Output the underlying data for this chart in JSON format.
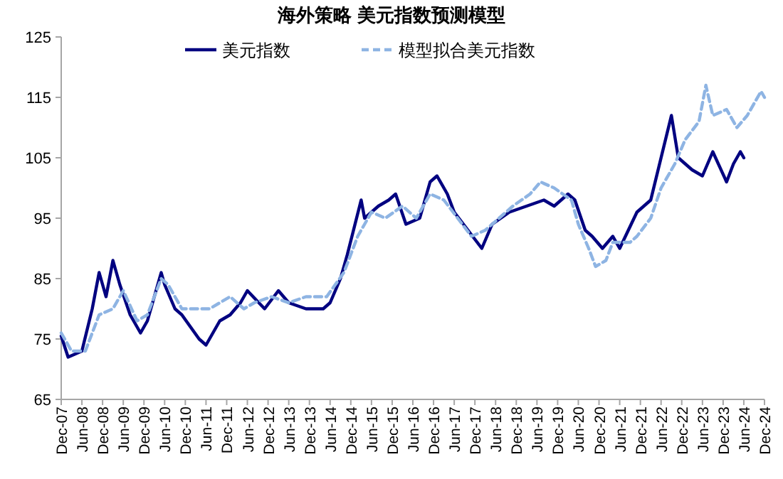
{
  "chart_data": {
    "type": "line",
    "title": "海外策略 美元指数预测模型",
    "xlim": [
      "2007-12",
      "2024-12"
    ],
    "ylim": [
      65,
      125
    ],
    "yticks": [
      65,
      75,
      85,
      95,
      105,
      115,
      125
    ],
    "xticks": [
      {
        "value": "2007-12",
        "label": "Dec-07"
      },
      {
        "value": "2008-06",
        "label": "Jun-08"
      },
      {
        "value": "2008-12",
        "label": "Dec-08"
      },
      {
        "value": "2009-06",
        "label": "Jun-09"
      },
      {
        "value": "2009-12",
        "label": "Dec-09"
      },
      {
        "value": "2010-06",
        "label": "Jun-10"
      },
      {
        "value": "2010-12",
        "label": "Dec-10"
      },
      {
        "value": "2011-06",
        "label": "Jun-11"
      },
      {
        "value": "2011-12",
        "label": "Dec-11"
      },
      {
        "value": "2012-06",
        "label": "Jun-12"
      },
      {
        "value": "2012-12",
        "label": "Dec-12"
      },
      {
        "value": "2013-06",
        "label": "Jun-13"
      },
      {
        "value": "2013-12",
        "label": "Dec-13"
      },
      {
        "value": "2014-06",
        "label": "Jun-14"
      },
      {
        "value": "2014-12",
        "label": "Dec-14"
      },
      {
        "value": "2015-06",
        "label": "Jun-15"
      },
      {
        "value": "2015-12",
        "label": "Dec-15"
      },
      {
        "value": "2016-06",
        "label": "Jun-16"
      },
      {
        "value": "2016-12",
        "label": "Dec-16"
      },
      {
        "value": "2017-06",
        "label": "Jun-17"
      },
      {
        "value": "2017-12",
        "label": "Dec-17"
      },
      {
        "value": "2018-06",
        "label": "Jun-18"
      },
      {
        "value": "2018-12",
        "label": "Dec-18"
      },
      {
        "value": "2019-06",
        "label": "Jun-19"
      },
      {
        "value": "2019-12",
        "label": "Dec-19"
      },
      {
        "value": "2020-06",
        "label": "Jun-20"
      },
      {
        "value": "2020-12",
        "label": "Dec-20"
      },
      {
        "value": "2021-06",
        "label": "Jun-21"
      },
      {
        "value": "2021-12",
        "label": "Dec-21"
      },
      {
        "value": "2022-06",
        "label": "Jun-22"
      },
      {
        "value": "2022-12",
        "label": "Dec-22"
      },
      {
        "value": "2023-06",
        "label": "Jun-23"
      },
      {
        "value": "2023-12",
        "label": "Dec-23"
      },
      {
        "value": "2024-06",
        "label": "Jun-24"
      },
      {
        "value": "2024-12",
        "label": "Dec-24"
      }
    ],
    "grid": false,
    "legend": "top",
    "marker": "none",
    "series": [
      {
        "name": "美元指数",
        "color": "#000080",
        "line_style": "solid",
        "x": [
          "2007-12",
          "2008-02",
          "2008-06",
          "2008-09",
          "2008-11",
          "2009-01",
          "2009-03",
          "2009-05",
          "2009-08",
          "2009-11",
          "2010-01",
          "2010-05",
          "2010-06",
          "2010-09",
          "2010-11",
          "2011-04",
          "2011-06",
          "2011-10",
          "2012-01",
          "2012-04",
          "2012-06",
          "2012-11",
          "2013-03",
          "2013-06",
          "2013-11",
          "2014-04",
          "2014-06",
          "2014-09",
          "2014-11",
          "2015-03",
          "2015-04",
          "2015-08",
          "2015-11",
          "2016-01",
          "2016-04",
          "2016-08",
          "2016-11",
          "2017-01",
          "2017-04",
          "2017-06",
          "2017-10",
          "2018-02",
          "2018-05",
          "2018-10",
          "2019-03",
          "2019-08",
          "2019-11",
          "2020-03",
          "2020-05",
          "2020-08",
          "2020-10",
          "2021-01",
          "2021-04",
          "2021-06",
          "2021-11",
          "2022-03",
          "2022-06",
          "2022-09",
          "2022-11",
          "2023-03",
          "2023-06",
          "2023-09",
          "2024-01",
          "2024-03",
          "2024-05",
          "2024-06"
        ],
        "values": [
          75.5,
          72,
          73,
          80,
          86,
          82,
          88,
          84,
          79,
          76,
          78,
          86,
          84,
          80,
          79,
          75,
          74,
          78,
          79,
          81,
          83,
          80,
          83,
          81,
          80,
          80,
          81,
          85,
          89,
          98,
          95,
          97,
          98,
          99,
          94,
          95,
          101,
          102,
          99,
          96,
          93,
          90,
          94,
          96,
          97,
          98,
          97,
          99,
          98,
          93,
          92,
          90,
          92,
          90,
          96,
          98,
          105,
          112,
          105,
          103,
          102,
          106,
          101,
          104,
          106,
          105
        ]
      },
      {
        "name": "模型拟合美元指数",
        "color": "#8eb4e3",
        "line_style": "dashed",
        "x": [
          "2007-12",
          "2008-03",
          "2008-07",
          "2008-11",
          "2009-03",
          "2009-06",
          "2009-10",
          "2010-01",
          "2010-05",
          "2010-07",
          "2010-11",
          "2011-04",
          "2011-07",
          "2012-01",
          "2012-05",
          "2012-08",
          "2013-01",
          "2013-06",
          "2013-11",
          "2014-05",
          "2014-10",
          "2015-02",
          "2015-06",
          "2015-10",
          "2016-03",
          "2016-07",
          "2016-11",
          "2017-03",
          "2017-07",
          "2017-11",
          "2018-03",
          "2018-07",
          "2018-11",
          "2019-04",
          "2019-07",
          "2019-11",
          "2020-04",
          "2020-06",
          "2020-09",
          "2020-11",
          "2021-02",
          "2021-04",
          "2021-09",
          "2021-11",
          "2022-03",
          "2022-06",
          "2022-10",
          "2023-01",
          "2023-05",
          "2023-07",
          "2023-09",
          "2024-01",
          "2024-04",
          "2024-07",
          "2024-11",
          "2024-12"
        ],
        "values": [
          76,
          73,
          73,
          79,
          80,
          83,
          78,
          79,
          85,
          84,
          80,
          80,
          80,
          82,
          80,
          81,
          82,
          81,
          82,
          82,
          86,
          92,
          96,
          95,
          97,
          95,
          99,
          98,
          95,
          92,
          93,
          95,
          97,
          99,
          101,
          100,
          98,
          94,
          90,
          87,
          88,
          91,
          91,
          92,
          95,
          100,
          104,
          108,
          111,
          117,
          112,
          113,
          110,
          112,
          116,
          115
        ]
      }
    ]
  }
}
